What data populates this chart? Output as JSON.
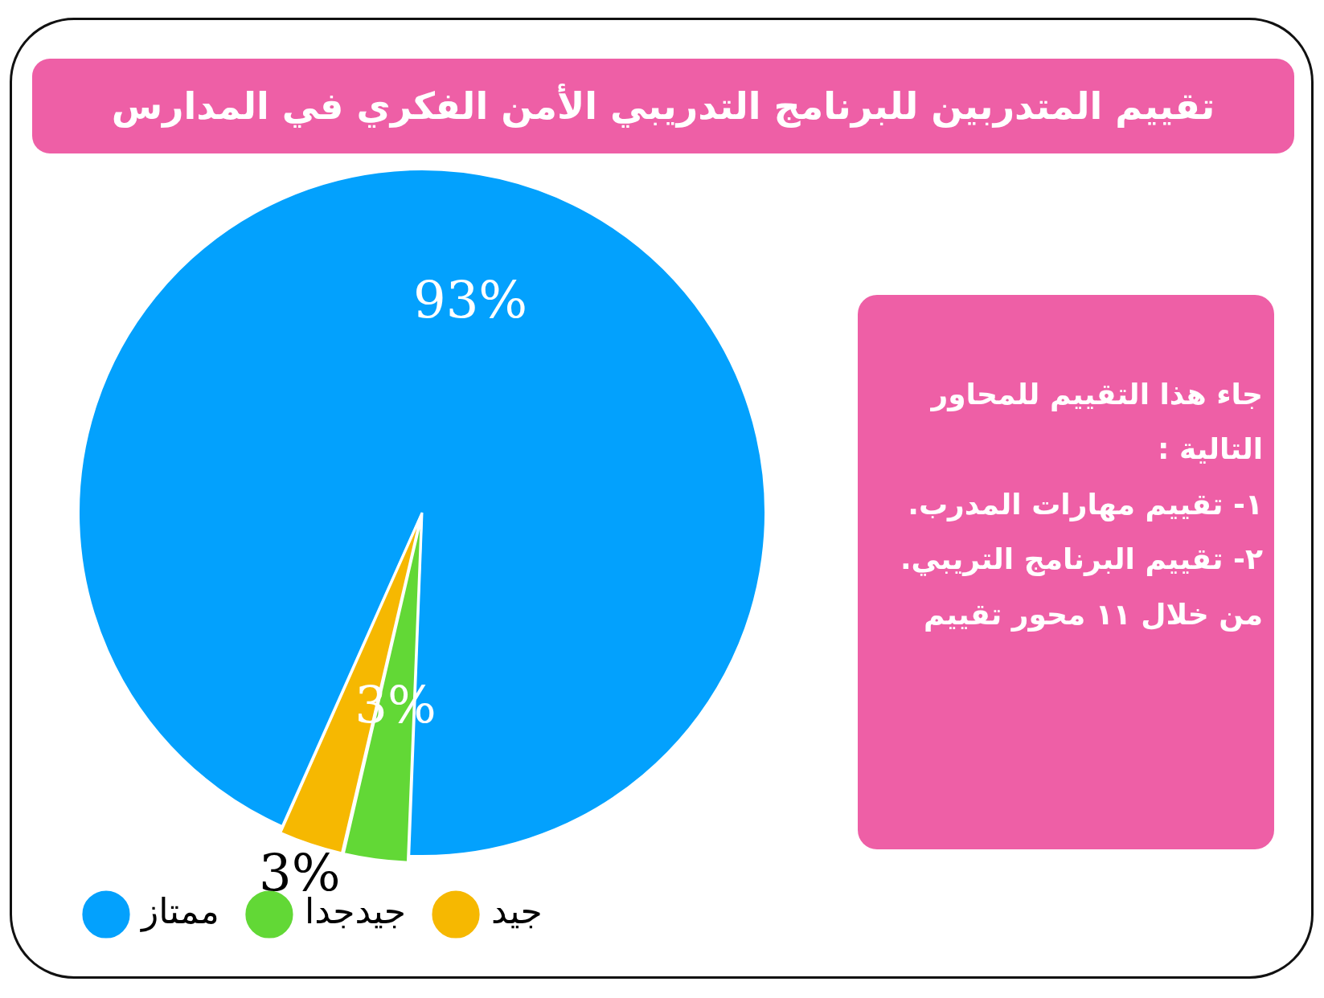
{
  "chart_data": {
    "type": "pie",
    "title": "تقييم المتدربين للبرنامج التدريبي الأمن الفكري في المدارس",
    "categories": [
      "ممتاز",
      "جيدجدا",
      "جيد"
    ],
    "values": [
      93,
      3,
      3
    ],
    "colors": [
      "#03a1fd",
      "#62d836",
      "#f6b801"
    ],
    "value_labels": [
      "93%",
      "3%",
      "3%"
    ],
    "legend": "bottom",
    "annotations": [
      "جاء هذا التقييم للمحاور التالية :",
      "١- تقييم مهارات المدرب.",
      "٢- تقييم البرنامج التريبي.",
      "من خلال ١١ محور تقييم"
    ]
  }
}
